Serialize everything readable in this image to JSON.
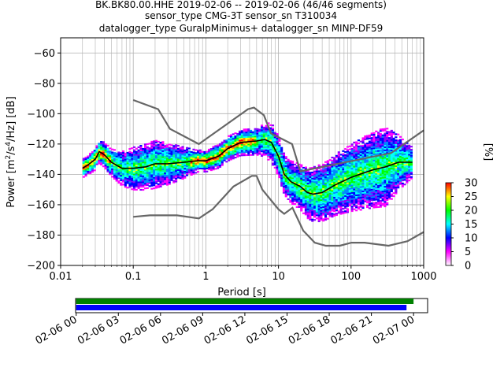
{
  "chart_data": [
    {
      "type": "heatmap",
      "title_lines": [
        "BK.BK80.00.HHE   2019-02-06 -- 2019-02-06  (46/46 segments)",
        "sensor_type CMG-3T sensor_sn T310034",
        "datalogger_type GuralpMinimus+ datalogger_sn MINP-DF59"
      ],
      "xlabel": "Period [s]",
      "ylabel_main": "Power [m",
      "ylabel_sup1": "2",
      "ylabel_mid": "/s",
      "ylabel_sup2": "4",
      "ylabel_end": "/Hz] [dB]",
      "xscale": "log",
      "xlim": [
        0.01,
        1000
      ],
      "ylim": [
        -200,
        -50
      ],
      "xticks": [
        {
          "v": 0.01,
          "label": "0.01"
        },
        {
          "v": 0.1,
          "label": "0.1"
        },
        {
          "v": 1,
          "label": "1"
        },
        {
          "v": 10,
          "label": "10"
        },
        {
          "v": 100,
          "label": "100"
        },
        {
          "v": 1000,
          "label": "1000"
        }
      ],
      "yticks": [
        -60,
        -80,
        -100,
        -120,
        -140,
        -160,
        -180,
        -200
      ],
      "grid": true,
      "colorbar": {
        "label": "[%]",
        "range": [
          0,
          30
        ],
        "ticks": [
          0,
          5,
          10,
          15,
          20,
          25,
          30
        ],
        "colors": [
          "#ffffff",
          "#ff00ff",
          "#0000ff",
          "#00ffff",
          "#00ff00",
          "#ffff00",
          "#ff0000"
        ]
      },
      "noise_model_color": "#666666",
      "high_noise_model": [
        [
          0.1,
          -91
        ],
        [
          0.22,
          -97
        ],
        [
          0.32,
          -110
        ],
        [
          0.8,
          -120
        ],
        [
          3.8,
          -97
        ],
        [
          4.6,
          -96
        ],
        [
          6.3,
          -101
        ],
        [
          7.9,
          -113
        ],
        [
          15.4,
          -120
        ],
        [
          20,
          -138
        ],
        [
          354.8,
          -126
        ],
        [
          1000,
          -111
        ]
      ],
      "low_noise_model": [
        [
          0.1,
          -168
        ],
        [
          0.17,
          -167
        ],
        [
          0.4,
          -167
        ],
        [
          0.8,
          -169
        ],
        [
          1.24,
          -163
        ],
        [
          2.4,
          -148
        ],
        [
          4.3,
          -141
        ],
        [
          5,
          -141
        ],
        [
          6,
          -150
        ],
        [
          10,
          -163
        ],
        [
          12,
          -166
        ],
        [
          15.6,
          -162
        ],
        [
          21.9,
          -177
        ],
        [
          31.6,
          -185
        ],
        [
          45,
          -187
        ],
        [
          70,
          -187
        ],
        [
          101,
          -185
        ],
        [
          154,
          -185
        ],
        [
          328,
          -187
        ],
        [
          600,
          -184
        ],
        [
          1000,
          -178
        ]
      ],
      "mean_curve": [
        [
          0.02,
          -136
        ],
        [
          0.025,
          -133
        ],
        [
          0.03,
          -130
        ],
        [
          0.034,
          -125
        ],
        [
          0.04,
          -127
        ],
        [
          0.05,
          -132
        ],
        [
          0.07,
          -136
        ],
        [
          0.1,
          -136
        ],
        [
          0.15,
          -135
        ],
        [
          0.2,
          -133
        ],
        [
          0.3,
          -133
        ],
        [
          0.5,
          -132
        ],
        [
          0.8,
          -131
        ],
        [
          1,
          -131
        ],
        [
          1.5,
          -128
        ],
        [
          2,
          -123
        ],
        [
          3,
          -119
        ],
        [
          5,
          -118
        ],
        [
          6.5,
          -117
        ],
        [
          8,
          -119
        ],
        [
          10,
          -128
        ],
        [
          12,
          -140
        ],
        [
          15,
          -145
        ],
        [
          20,
          -148
        ],
        [
          25,
          -152
        ],
        [
          30,
          -153
        ],
        [
          40,
          -152
        ],
        [
          60,
          -147
        ],
        [
          100,
          -142
        ],
        [
          150,
          -139
        ],
        [
          200,
          -137
        ],
        [
          300,
          -135
        ],
        [
          450,
          -132
        ],
        [
          700,
          -132
        ]
      ],
      "psd_band_width_db": [
        [
          0.02,
          6
        ],
        [
          0.03,
          7
        ],
        [
          0.05,
          9
        ],
        [
          0.1,
          14
        ],
        [
          0.2,
          16
        ],
        [
          0.4,
          12
        ],
        [
          0.8,
          7
        ],
        [
          2,
          8
        ],
        [
          5,
          9
        ],
        [
          8,
          13
        ],
        [
          12,
          13
        ],
        [
          20,
          15
        ],
        [
          30,
          18
        ],
        [
          60,
          20
        ],
        [
          150,
          24
        ],
        [
          300,
          26
        ],
        [
          700,
          10
        ]
      ]
    },
    {
      "type": "timeline",
      "xlim": [
        "2019-02-06 00:00",
        "2019-02-07 01:00"
      ],
      "xticks": [
        "02-06 00",
        "02-06 03",
        "02-06 06",
        "02-06 09",
        "02-06 12",
        "02-06 15",
        "02-06 18",
        "02-06 21",
        "02-07 00"
      ],
      "tick_hours": [
        0,
        3,
        6,
        9,
        12,
        15,
        18,
        21,
        24
      ],
      "bars": [
        {
          "color": "#008000",
          "start_hour": 0,
          "end_hour": 24.0
        },
        {
          "color": "#0000ff",
          "start_hour": 0,
          "end_hour": 23.5
        }
      ]
    }
  ]
}
